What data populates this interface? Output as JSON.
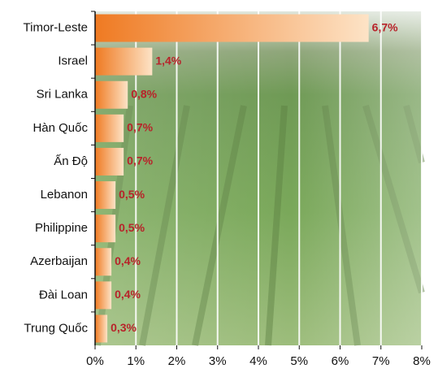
{
  "chart_data": {
    "type": "bar",
    "orientation": "horizontal",
    "categories": [
      "Timor-Leste",
      "Israel",
      "Sri Lanka",
      "Hàn Quốc",
      "Ấn Độ",
      "Lebanon",
      "Philippine",
      "Azerbaijan",
      "Đài Loan",
      "Trung Quốc"
    ],
    "values": [
      6.7,
      1.4,
      0.8,
      0.7,
      0.7,
      0.5,
      0.5,
      0.4,
      0.4,
      0.3
    ],
    "value_labels": [
      "6,7%",
      "1,4%",
      "0,8%",
      "0,7%",
      "0,7%",
      "0,5%",
      "0,5%",
      "0,4%",
      "0,4%",
      "0,3%"
    ],
    "xlim": [
      0,
      8
    ],
    "xticks": [
      {
        "value": 0,
        "label": "0%"
      },
      {
        "value": 1,
        "label": "1%"
      },
      {
        "value": 2,
        "label": "2%"
      },
      {
        "value": 3,
        "label": "3%"
      },
      {
        "value": 4,
        "label": "4%"
      },
      {
        "value": 5,
        "label": "5%"
      },
      {
        "value": 6,
        "label": "6%"
      },
      {
        "value": 7,
        "label": "7%"
      },
      {
        "value": 8,
        "label": "8%"
      }
    ],
    "grid": true
  }
}
